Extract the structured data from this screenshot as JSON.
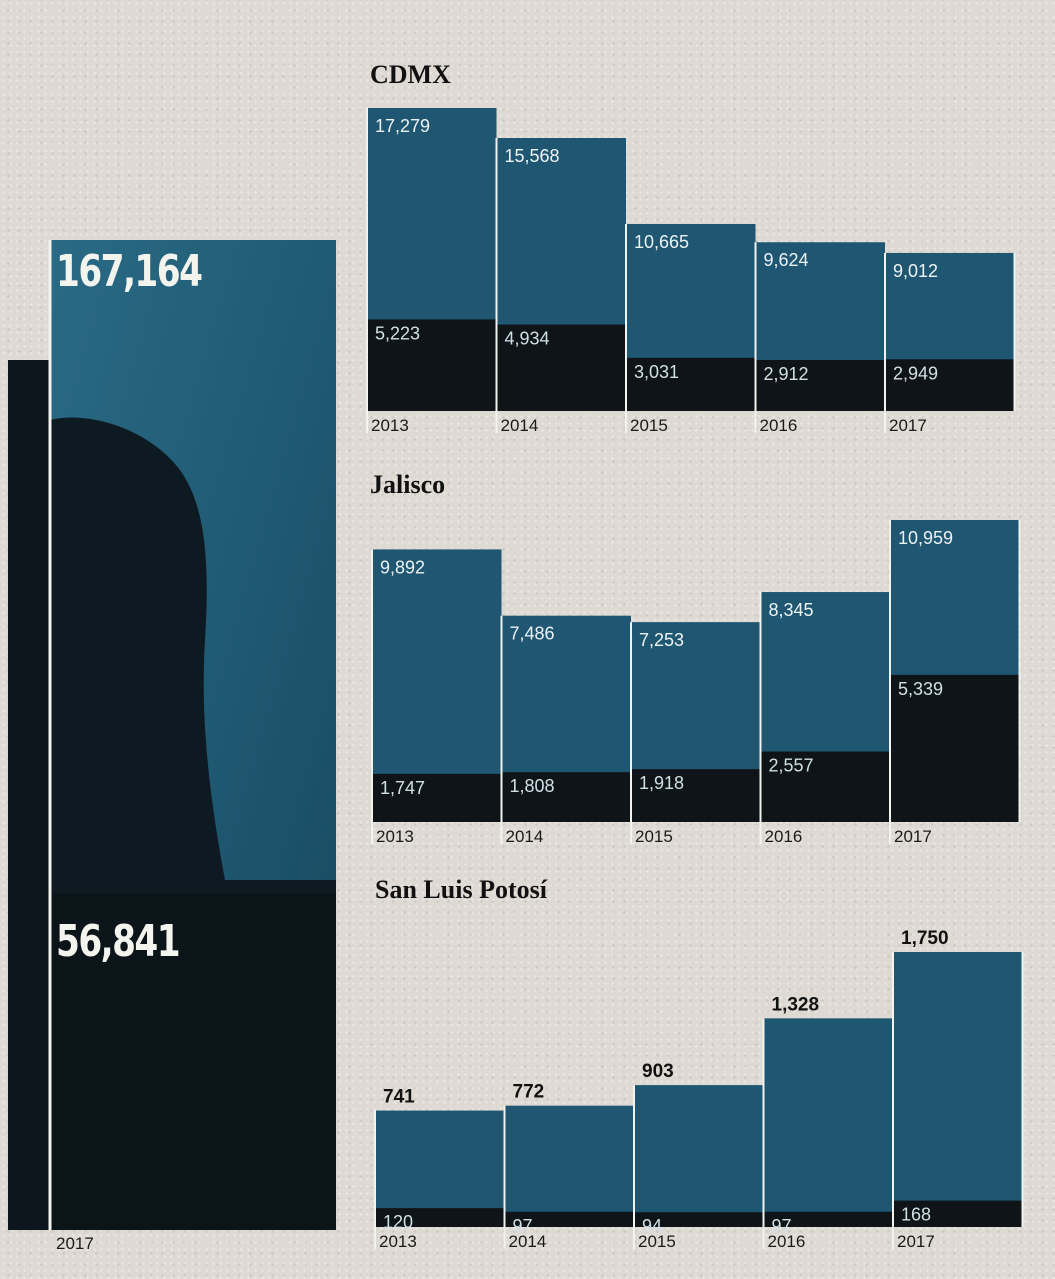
{
  "summary": {
    "total": "167,164",
    "subset": "56,841",
    "year": "2017"
  },
  "colors": {
    "total_bar": "#1f5773",
    "subset_bar": "#0e1418",
    "photo_dark": "#0d1a22",
    "frame_line": "#f2f2ee"
  },
  "chart_data": [
    {
      "type": "bar",
      "title": "CDMX",
      "categories": [
        "2013",
        "2014",
        "2015",
        "2016",
        "2017"
      ],
      "series": [
        {
          "values": [
            17279,
            15568,
            10665,
            9624,
            9012
          ],
          "labels": [
            "17,279",
            "15,568",
            "10,665",
            "9,624",
            "9,012"
          ]
        },
        {
          "values": [
            5223,
            4934,
            3031,
            2912,
            2949
          ],
          "labels": [
            "5,223",
            "4,934",
            "3,031",
            "2,912",
            "2,949"
          ]
        }
      ],
      "ylim": [
        0,
        17279
      ]
    },
    {
      "type": "bar",
      "title": "Jalisco",
      "categories": [
        "2013",
        "2014",
        "2015",
        "2016",
        "2017"
      ],
      "series": [
        {
          "values": [
            9892,
            7486,
            7253,
            8345,
            10959
          ],
          "labels": [
            "9,892",
            "7,486",
            "7,253",
            "8,345",
            "10,959"
          ]
        },
        {
          "values": [
            1747,
            1808,
            1918,
            2557,
            5339
          ],
          "labels": [
            "1,747",
            "1,808",
            "1,918",
            "2,557",
            "5,339"
          ]
        }
      ],
      "ylim": [
        0,
        10959
      ]
    },
    {
      "type": "bar",
      "title": "San Luis Potosí",
      "categories": [
        "2013",
        "2014",
        "2015",
        "2016",
        "2017"
      ],
      "series": [
        {
          "values": [
            741,
            772,
            903,
            1328,
            1750
          ],
          "labels": [
            "741",
            "772",
            "903",
            "1,328",
            "1,750"
          ]
        },
        {
          "values": [
            120,
            97,
            94,
            97,
            168
          ],
          "labels": [
            "120",
            "97",
            "94",
            "97",
            "168"
          ]
        }
      ],
      "ylim": [
        0,
        1750
      ]
    }
  ]
}
